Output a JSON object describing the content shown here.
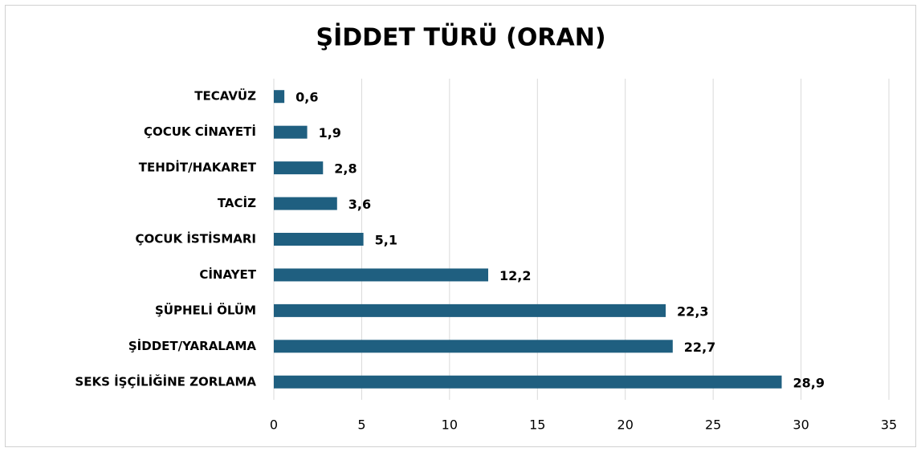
{
  "chart_data": {
    "type": "bar",
    "orientation": "horizontal",
    "title": "ŞİDDET TÜRÜ (ORAN)",
    "categories": [
      "TECAVÜZ",
      "ÇOCUK CİNAYETİ",
      "TEHDİT/HAKARET",
      "TACİZ",
      "ÇOCUK İSTİSMARI",
      "CİNAYET",
      "ŞÜPHELİ ÖLÜM",
      "ŞİDDET/YARALAMA",
      "SEKS İŞÇİLİĞİNE ZORLAMA"
    ],
    "values": [
      0.6,
      1.9,
      2.8,
      3.6,
      5.1,
      12.2,
      22.3,
      22.7,
      28.9
    ],
    "value_labels": [
      "0,6",
      "1,9",
      "2,8",
      "3,6",
      "5,1",
      "12,2",
      "22,3",
      "22,7",
      "28,9"
    ],
    "color": "#1f5f80",
    "xlim": [
      0,
      35
    ],
    "xticks": [
      0,
      5,
      10,
      15,
      20,
      25,
      30,
      35
    ],
    "grid": true
  }
}
